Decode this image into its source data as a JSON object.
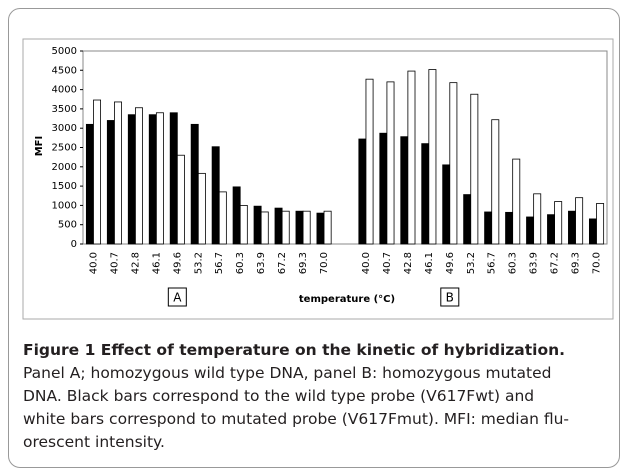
{
  "chart_data": {
    "type": "bar",
    "ylabel": "MFI",
    "xlabel": "temperature (°C)",
    "annotations": [
      "A",
      "B"
    ],
    "categories": [
      "40.0",
      "40.7",
      "42.8",
      "46.1",
      "49.6",
      "53.2",
      "56.7",
      "60.3",
      "63.9",
      "67.2",
      "69.3",
      "70.0",
      null,
      "40.0",
      "40.7",
      "42.8",
      "46.1",
      "49.6",
      "53.2",
      "56.7",
      "60.3",
      "63.9",
      "67.2",
      "69.3",
      "70.0"
    ],
    "series": [
      {
        "color": "#000000",
        "values": [
          3100,
          3200,
          3350,
          3350,
          3400,
          3100,
          2520,
          1480,
          980,
          930,
          850,
          800,
          null,
          2720,
          2870,
          2780,
          2600,
          2050,
          1280,
          830,
          820,
          700,
          760,
          850,
          650
        ]
      },
      {
        "color": "#ffffff",
        "values": [
          3730,
          3680,
          3530,
          3400,
          2300,
          1830,
          1350,
          1000,
          830,
          850,
          850,
          850,
          null,
          4270,
          4200,
          4480,
          4520,
          4180,
          3880,
          3220,
          2200,
          1300,
          1100,
          1200,
          1050
        ]
      }
    ],
    "ylim": [
      0,
      5000
    ],
    "yticks": [
      0,
      500,
      1000,
      1500,
      2000,
      2500,
      3000,
      3500,
      4000,
      4500,
      5000
    ],
    "grid": false
  },
  "caption": {
    "title": "Figure 1 Effect of temperature on the kinetic of hybridization.",
    "lines": [
      "Panel A; homozygous wild type DNA, panel B: homozygous mutated",
      "DNA. Black bars correspond to the wild type probe (V617Fwt) and",
      "white bars correspond to mutated probe (V617Fmut). MFI: median flu-",
      "orescent intensity."
    ]
  }
}
